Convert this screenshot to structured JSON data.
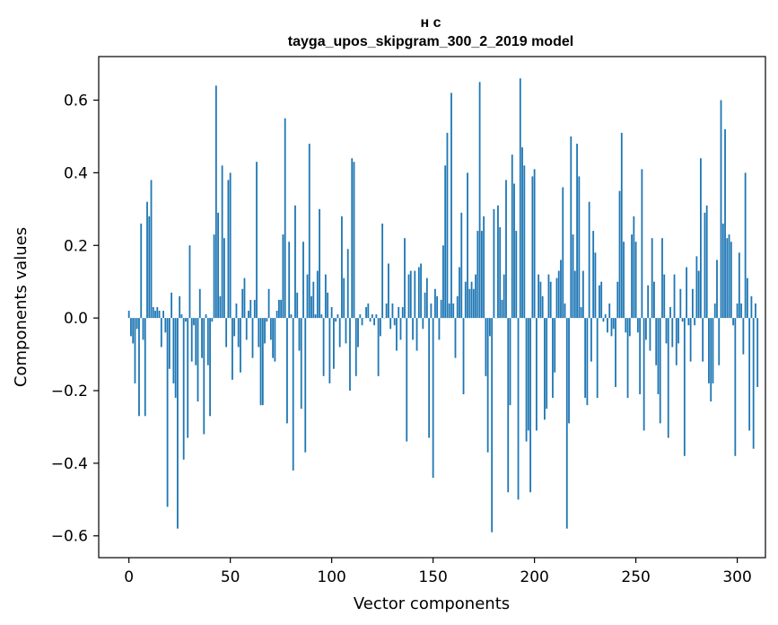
{
  "chart_data": {
    "type": "bar",
    "title_line1": "н с",
    "title_line2": "tayga_upos_skipgram_300_2_2019 model",
    "xlabel": "Vector components",
    "ylabel": "Components values",
    "xlim": [
      -14.9,
      313.9
    ],
    "ylim": [
      -0.66,
      0.72
    ],
    "xticks": [
      0,
      50,
      100,
      150,
      200,
      250,
      300
    ],
    "xtick_labels": [
      "0",
      "50",
      "100",
      "150",
      "200",
      "250",
      "300"
    ],
    "yticks": [
      -0.6,
      -0.4,
      -0.2,
      0.0,
      0.2,
      0.4,
      0.6
    ],
    "ytick_labels": [
      "−0.6",
      "−0.4",
      "−0.2",
      "0.0",
      "0.2",
      "0.4",
      "0.6"
    ],
    "bar_color": "#1f77b4",
    "bar_width": 0.8,
    "values": [
      0.02,
      -0.05,
      -0.07,
      -0.18,
      -0.03,
      -0.27,
      0.26,
      -0.06,
      -0.27,
      0.32,
      0.28,
      0.38,
      0.03,
      0.02,
      0.03,
      0.02,
      -0.08,
      0.02,
      -0.04,
      -0.52,
      -0.14,
      0.07,
      -0.18,
      -0.22,
      -0.58,
      0.06,
      0.01,
      -0.39,
      -0.01,
      -0.33,
      0.2,
      -0.12,
      -0.02,
      -0.13,
      -0.23,
      0.08,
      -0.11,
      -0.32,
      0.01,
      -0.13,
      -0.27,
      -0.01,
      0.23,
      0.64,
      0.29,
      0.06,
      0.42,
      0.22,
      -0.08,
      0.38,
      0.4,
      -0.17,
      -0.05,
      0.04,
      -0.08,
      -0.15,
      0.08,
      0.11,
      -0.06,
      0.02,
      0.05,
      -0.11,
      0.05,
      0.43,
      -0.08,
      -0.24,
      -0.24,
      -0.07,
      -0.01,
      0.08,
      -0.06,
      -0.11,
      -0.12,
      0.02,
      0.05,
      0.05,
      0.23,
      0.55,
      -0.29,
      0.21,
      0.01,
      -0.42,
      0.31,
      0.07,
      -0.09,
      -0.25,
      0.21,
      -0.37,
      0.12,
      0.48,
      0.06,
      0.1,
      0.01,
      0.13,
      0.3,
      0.01,
      -0.16,
      0.12,
      0.07,
      -0.18,
      0.03,
      -0.14,
      -0.01,
      0.01,
      -0.08,
      0.28,
      0.11,
      -0.07,
      0.19,
      -0.2,
      0.44,
      0.43,
      -0.16,
      -0.08,
      0.01,
      -0.02,
      0.0,
      0.03,
      0.04,
      -0.01,
      0.01,
      -0.02,
      0.01,
      -0.16,
      -0.05,
      0.26,
      0.0,
      0.04,
      0.15,
      -0.03,
      0.04,
      -0.02,
      -0.09,
      0.03,
      -0.06,
      0.03,
      0.22,
      -0.34,
      0.12,
      0.13,
      -0.06,
      0.13,
      -0.09,
      0.14,
      0.15,
      -0.03,
      0.07,
      0.11,
      -0.33,
      0.04,
      -0.44,
      0.08,
      0.06,
      -0.06,
      0.05,
      0.2,
      0.42,
      0.51,
      0.04,
      0.62,
      0.04,
      -0.11,
      0.06,
      0.14,
      0.29,
      -0.21,
      0.1,
      0.4,
      0.08,
      0.1,
      0.08,
      0.12,
      0.24,
      0.65,
      0.24,
      0.28,
      -0.16,
      -0.37,
      -0.05,
      -0.59,
      0.3,
      0.0,
      0.31,
      0.25,
      0.05,
      0.12,
      0.38,
      -0.48,
      -0.24,
      0.45,
      0.37,
      0.24,
      -0.5,
      0.66,
      0.47,
      0.42,
      -0.34,
      -0.31,
      -0.48,
      0.39,
      0.41,
      -0.31,
      0.12,
      0.1,
      0.06,
      -0.28,
      -0.25,
      0.12,
      0.1,
      -0.22,
      -0.15,
      0.11,
      0.13,
      0.16,
      0.36,
      0.04,
      -0.58,
      -0.29,
      0.5,
      0.23,
      0.13,
      0.48,
      0.39,
      0.03,
      0.13,
      -0.22,
      -0.24,
      0.32,
      -0.12,
      0.24,
      0.18,
      -0.22,
      0.09,
      0.1,
      -0.01,
      0.01,
      -0.04,
      0.04,
      -0.05,
      -0.03,
      -0.19,
      0.1,
      0.35,
      0.51,
      0.21,
      -0.04,
      -0.22,
      -0.05,
      0.23,
      0.28,
      0.21,
      -0.04,
      -0.21,
      0.41,
      -0.31,
      -0.06,
      0.09,
      -0.09,
      0.22,
      0.1,
      -0.13,
      -0.21,
      -0.29,
      0.22,
      0.12,
      -0.07,
      -0.33,
      0.03,
      -0.08,
      0.12,
      -0.13,
      -0.07,
      0.08,
      -0.01,
      -0.38,
      0.14,
      -0.02,
      -0.12,
      0.08,
      -0.02,
      0.17,
      0.13,
      0.44,
      -0.12,
      0.29,
      0.31,
      -0.18,
      -0.23,
      -0.18,
      0.04,
      0.16,
      -0.13,
      0.6,
      0.26,
      0.52,
      0.22,
      0.23,
      0.21,
      -0.02,
      -0.38,
      0.04,
      0.18,
      0.04,
      -0.1,
      0.4,
      0.11,
      -0.31,
      0.06,
      -0.36,
      0.04,
      -0.19
    ]
  }
}
